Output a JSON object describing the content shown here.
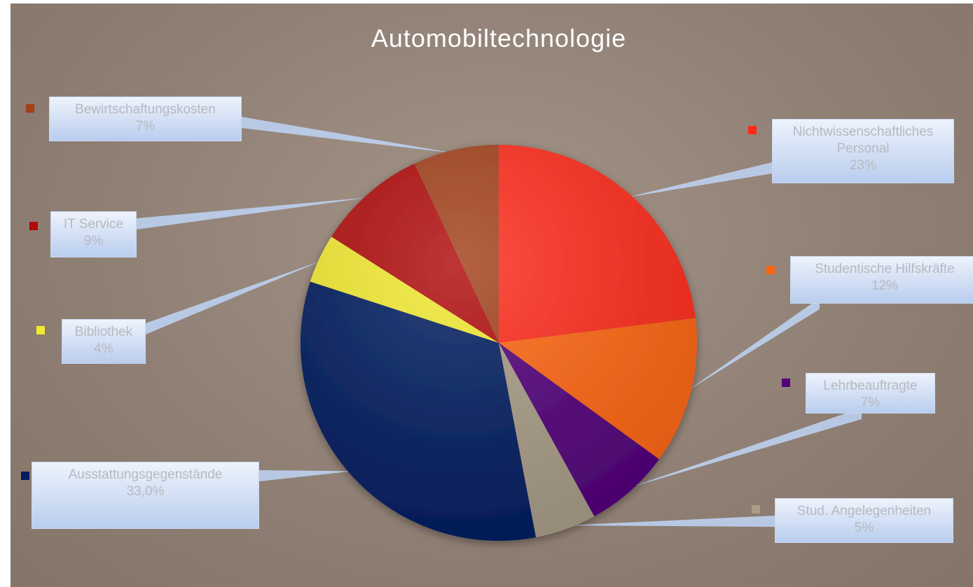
{
  "chart_data": {
    "type": "pie",
    "title": "Automobiltechnologie",
    "categories": [
      "Nichtwissenschaftliches Personal",
      "Studentische Hilfskräfte",
      "Lehrbeauftragte",
      "Stud. Angelegenheiten",
      "Ausstattungsgegenstände",
      "Bibliothek",
      "IT Service",
      "Bewirtschaftungskosten"
    ],
    "values": [
      23,
      12,
      7,
      5,
      33,
      4,
      9,
      7
    ],
    "value_labels": [
      "23%",
      "12%",
      "7%",
      "5%",
      "33,0%",
      "4%",
      "9%",
      "7%"
    ],
    "colors": [
      "#ff2a1a",
      "#ff6510",
      "#52007a",
      "#a89c86",
      "#001c60",
      "#f2ea30",
      "#b00a0a",
      "#a2401a"
    ]
  }
}
